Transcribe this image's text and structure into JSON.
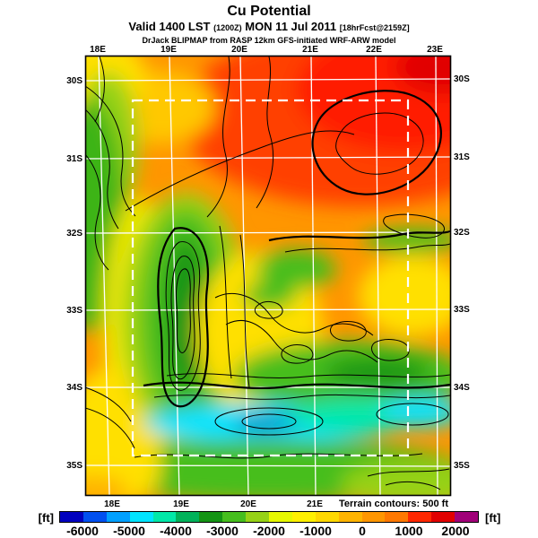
{
  "header": {
    "title": "Cu Potential",
    "valid_main_1": "Valid 1400 LST",
    "valid_small_1": "(1200Z)",
    "valid_main_2": "MON 11 Jul 2011",
    "valid_small_2": "[18hrFcst@2159Z]",
    "credit": "DrJack BLIPMAP from RASP 12km GFS-initiated WRF-ARW model"
  },
  "map": {
    "lon_labels_top": [
      "18E",
      "19E",
      "20E",
      "21E",
      "22E",
      "23E"
    ],
    "lon_labels_bottom": [
      "18E",
      "19E",
      "20E",
      "21E"
    ],
    "lat_labels_left": [
      "30S",
      "31S",
      "32S",
      "33S",
      "34S",
      "35S"
    ],
    "lat_labels_right": [
      "30S",
      "31S",
      "32S",
      "33S",
      "34S",
      "35S"
    ],
    "terrain_note": "Terrain contours: 500 ft"
  },
  "colorbar": {
    "unit_left": "[ft]",
    "unit_right": "[ft]",
    "tick_labels": [
      "-6000",
      "-5000",
      "-4000",
      "-3000",
      "-2000",
      "-1000",
      "0",
      "1000",
      "2000"
    ],
    "segment_colors": [
      "#0000be",
      "#0050f0",
      "#00a0ff",
      "#00e4ff",
      "#00e8a8",
      "#00b25a",
      "#149414",
      "#46be1e",
      "#96d216",
      "#e6f800",
      "#fff000",
      "#ffd800",
      "#ffb400",
      "#ff9600",
      "#ff7800",
      "#ff2800",
      "#e10000",
      "#a00078"
    ],
    "value_min": -6500,
    "value_max": 2500,
    "step_ft": 500
  },
  "chart_data": {
    "type": "heatmap",
    "title": "Cu Potential",
    "subtitle": "Valid 1400 LST (1200Z) MON 11 Jul 2011 [18hrFcst@2159Z]",
    "source": "DrJack BLIPMAP from RASP 12km GFS-initiated WRF-ARW model",
    "units": "ft",
    "x_ticks": [
      "18E",
      "19E",
      "20E",
      "21E",
      "22E",
      "23E"
    ],
    "y_ticks": [
      "30S",
      "31S",
      "32S",
      "33S",
      "34S",
      "35S"
    ],
    "colorbar_ticks": [
      -6000,
      -5000,
      -4000,
      -3000,
      -2000,
      -1000,
      0,
      1000,
      2000
    ],
    "colorbar_range_ft": [
      -6500,
      2500
    ],
    "contour_interval": "Terrain contours: 500 ft",
    "overlays": [
      "black terrain contour lines every 500 ft",
      "white lat/lon graticule",
      "white dashed model domain rectangle"
    ],
    "field_estimates_ft": [
      {
        "region": "northeast corner (22E-23E, 30S-31S)",
        "value": 2250
      },
      {
        "region": "northern band (19E-23E, 30S-32S)",
        "value": 1000
      },
      {
        "region": "northwest corner (18E, 30S)",
        "value": -1500
      },
      {
        "region": "west coast strip (18E, 31S-33S)",
        "value": -3000
      },
      {
        "region": "Cederberg ridge (19E, 32S-33.5S)",
        "value": -3500
      },
      {
        "region": "central interior (19.5E-21E, 32S-33S)",
        "value": -500
      },
      {
        "region": "southern mountain band (19E-23E, 33.5S)",
        "value": -3000
      },
      {
        "region": "south coastal band (19E-23E, 34S-34.5S)",
        "value": -4750
      },
      {
        "region": "far south (19E-23E, 34.5S-35.5S)",
        "value": -2500
      },
      {
        "region": "southwest corner (18E, 35S)",
        "value": -750
      }
    ]
  }
}
